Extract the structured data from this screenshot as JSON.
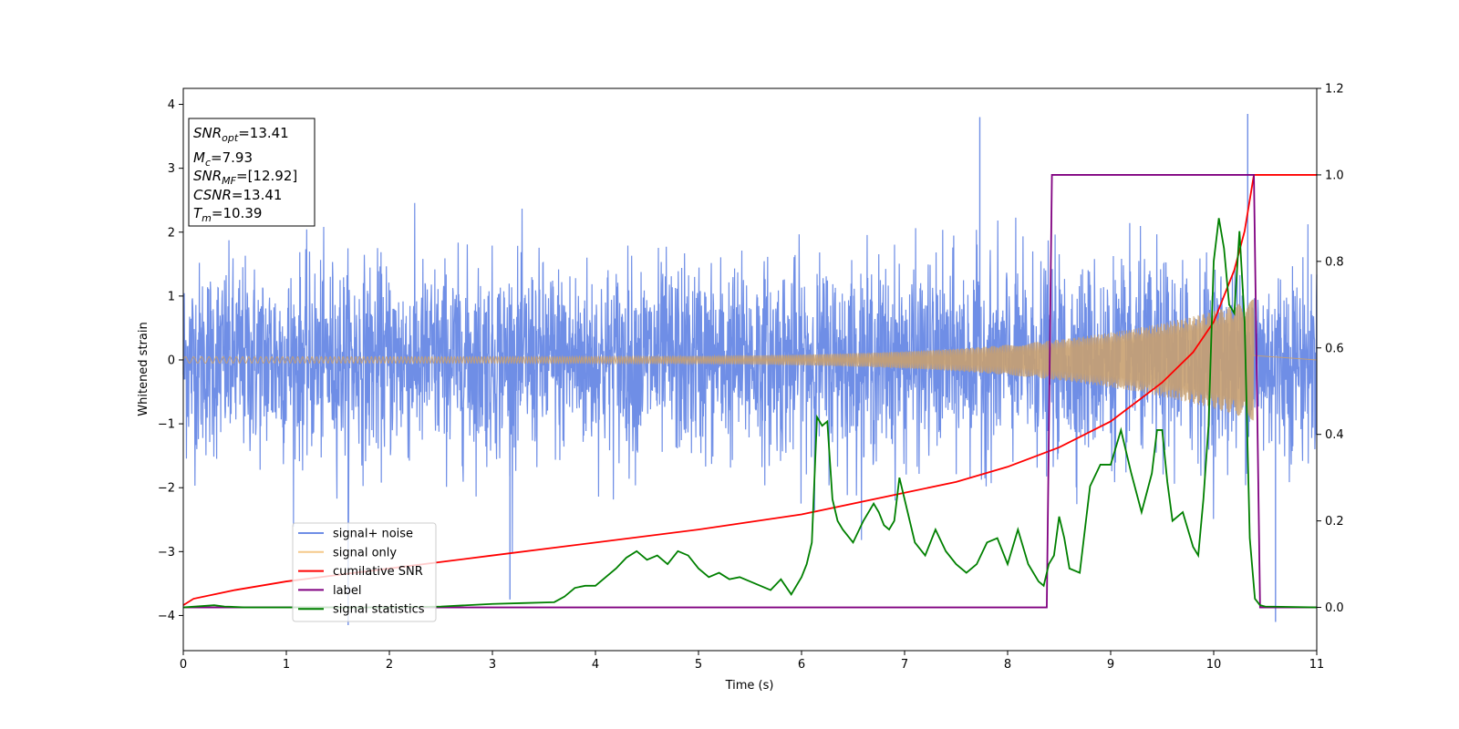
{
  "chart_data": {
    "type": "line",
    "xlabel": "Time (s)",
    "ylabel": "Whitened strain",
    "xlim": [
      0,
      11
    ],
    "ylim_left": [
      -4.55,
      4.25
    ],
    "ylim_right": [
      -0.1,
      1.2
    ],
    "x_ticks": [
      "0",
      "1",
      "2",
      "3",
      "4",
      "5",
      "6",
      "7",
      "8",
      "9",
      "10",
      "11"
    ],
    "y_ticks_left": [
      "4",
      "3",
      "2",
      "1",
      "0",
      "−1",
      "−2",
      "−3",
      "−4"
    ],
    "y_ticks_right": [
      "1.2",
      "1.0",
      "0.8",
      "0.6",
      "0.4",
      "0.2",
      "0.0"
    ],
    "legend_placement": "lower-left",
    "grid": false,
    "info_box": {
      "snr_opt": {
        "symbol": "SNR",
        "sub": "opt",
        "value": "=13.41"
      },
      "mc": {
        "symbol": "M",
        "sub": "c",
        "value": "=7.93"
      },
      "snr_mf": {
        "symbol": "SNR",
        "sub": "MF",
        "value": "=[12.92]"
      },
      "csnr": {
        "symbol": "CSNR",
        "sub": "",
        "value": "=13.41"
      },
      "tm": {
        "symbol": "T",
        "sub": "m",
        "value": "=10.39"
      }
    },
    "series": [
      {
        "name": "signal+ noise",
        "axis": "left",
        "color": "#6f8ee6",
        "description_values": "noise band",
        "band_sigma": 0.75,
        "peak_extremes": [
          [
            7.73,
            3.8
          ],
          [
            10.33,
            3.85
          ],
          [
            1.6,
            -4.15
          ],
          [
            10.6,
            -4.1
          ],
          [
            3.17,
            -3.75
          ]
        ]
      },
      {
        "name": "signal only",
        "axis": "left",
        "color": "#f5c98a",
        "amplitude_start": 0.05,
        "amplitude_end": 0.95,
        "t_merger": 10.39
      },
      {
        "name": "cumilative SNR",
        "axis": "right",
        "color": "#ff0000",
        "x": [
          0,
          0.1,
          0.5,
          1,
          2,
          3,
          4,
          5,
          6,
          7,
          7.5,
          8,
          8.5,
          9,
          9.5,
          9.8,
          10,
          10.2,
          10.3,
          10.39,
          11
        ],
        "y": [
          0.005,
          0.02,
          0.04,
          0.06,
          0.09,
          0.12,
          0.15,
          0.18,
          0.215,
          0.265,
          0.29,
          0.325,
          0.37,
          0.43,
          0.52,
          0.59,
          0.66,
          0.78,
          0.87,
          1.0,
          1.0
        ]
      },
      {
        "name": "label",
        "axis": "right",
        "color": "#800080",
        "x": [
          0,
          8.38,
          8.43,
          10.39,
          10.45,
          11
        ],
        "y": [
          0,
          0,
          1.0,
          1.0,
          0,
          0
        ]
      },
      {
        "name": "signal statistics",
        "axis": "right",
        "color": "#008000",
        "x": [
          0,
          0.3,
          0.4,
          0.6,
          1,
          2,
          2.5,
          3,
          3.3,
          3.6,
          3.7,
          3.8,
          3.9,
          4,
          4.1,
          4.2,
          4.3,
          4.4,
          4.5,
          4.6,
          4.7,
          4.8,
          4.9,
          5,
          5.1,
          5.2,
          5.3,
          5.4,
          5.5,
          5.6,
          5.7,
          5.8,
          5.9,
          6.0,
          6.05,
          6.1,
          6.15,
          6.2,
          6.25,
          6.3,
          6.35,
          6.4,
          6.5,
          6.6,
          6.7,
          6.75,
          6.8,
          6.85,
          6.9,
          6.95,
          7.0,
          7.05,
          7.1,
          7.2,
          7.3,
          7.4,
          7.5,
          7.6,
          7.7,
          7.8,
          7.9,
          8.0,
          8.1,
          8.2,
          8.3,
          8.35,
          8.4,
          8.45,
          8.5,
          8.55,
          8.6,
          8.7,
          8.8,
          8.9,
          9.0,
          9.1,
          9.2,
          9.3,
          9.4,
          9.45,
          9.5,
          9.55,
          9.6,
          9.7,
          9.8,
          9.85,
          9.9,
          9.95,
          10.0,
          10.05,
          10.1,
          10.15,
          10.2,
          10.25,
          10.3,
          10.35,
          10.4,
          10.45,
          10.5,
          11
        ],
        "y": [
          0,
          0.005,
          0.002,
          0,
          0,
          0,
          0.002,
          0.008,
          0.01,
          0.012,
          0.025,
          0.045,
          0.05,
          0.05,
          0.07,
          0.09,
          0.115,
          0.13,
          0.11,
          0.12,
          0.1,
          0.13,
          0.12,
          0.09,
          0.07,
          0.08,
          0.065,
          0.07,
          0.06,
          0.05,
          0.04,
          0.065,
          0.03,
          0.07,
          0.1,
          0.15,
          0.44,
          0.42,
          0.43,
          0.25,
          0.2,
          0.18,
          0.15,
          0.2,
          0.24,
          0.22,
          0.19,
          0.18,
          0.2,
          0.3,
          0.25,
          0.2,
          0.15,
          0.12,
          0.18,
          0.13,
          0.1,
          0.08,
          0.1,
          0.15,
          0.16,
          0.1,
          0.18,
          0.1,
          0.06,
          0.05,
          0.1,
          0.12,
          0.21,
          0.16,
          0.09,
          0.08,
          0.28,
          0.33,
          0.33,
          0.41,
          0.31,
          0.22,
          0.31,
          0.41,
          0.41,
          0.29,
          0.2,
          0.22,
          0.14,
          0.12,
          0.25,
          0.42,
          0.8,
          0.9,
          0.83,
          0.7,
          0.68,
          0.87,
          0.66,
          0.16,
          0.02,
          0.005,
          0.002,
          0
        ]
      }
    ]
  }
}
